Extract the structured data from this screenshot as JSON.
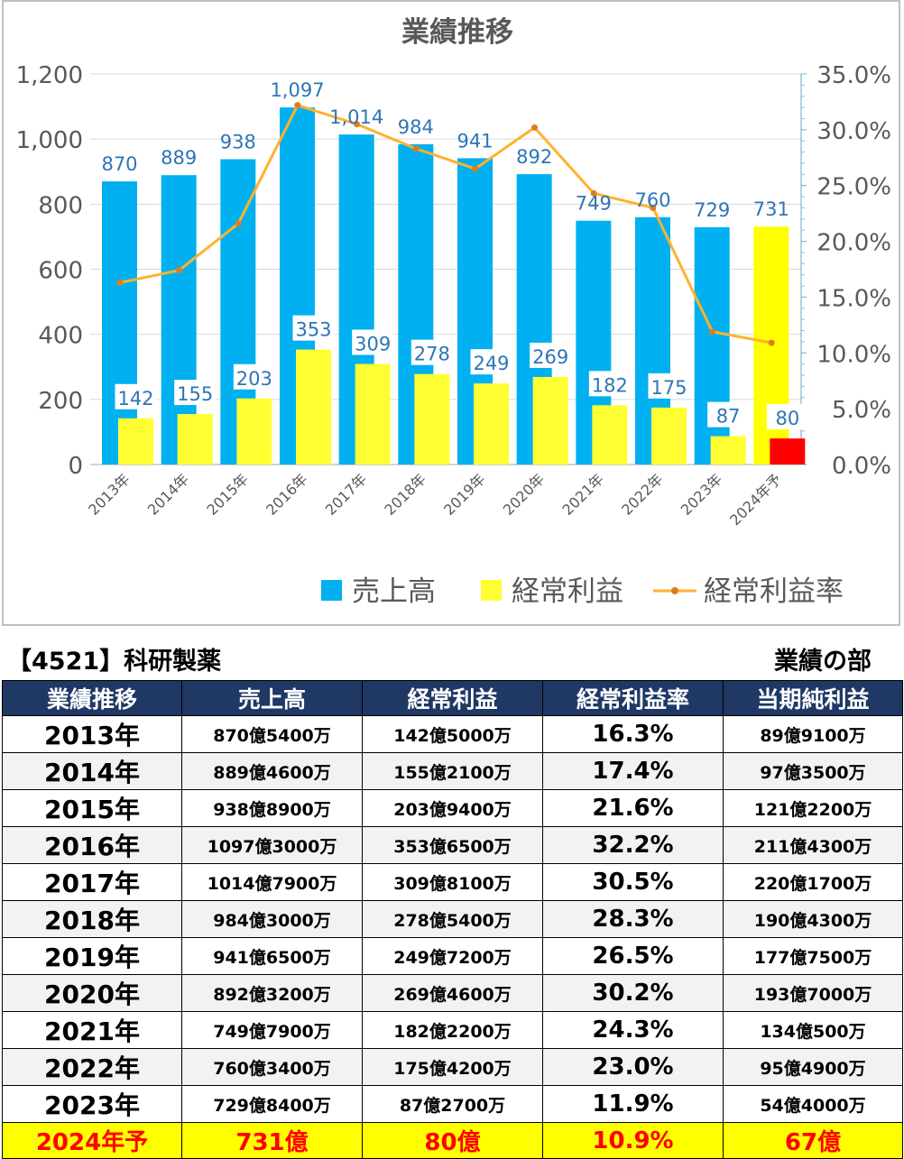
{
  "chart_data": {
    "type": "bar",
    "title": "業績推移",
    "categories": [
      "2013年",
      "2014年",
      "2015年",
      "2016年",
      "2017年",
      "2018年",
      "2019年",
      "2020年",
      "2021年",
      "2022年",
      "2023年",
      "2024年予"
    ],
    "series": [
      {
        "name": "売上高",
        "kind": "bar",
        "axis": "left",
        "color": "#00b0f0",
        "values": [
          870,
          889,
          938,
          1097,
          1014,
          984,
          941,
          892,
          749,
          760,
          729,
          731
        ],
        "labels": [
          "870",
          "889",
          "938",
          "1,097",
          "1,014",
          "984",
          "941",
          "892",
          "749",
          "760",
          "729",
          "731"
        ]
      },
      {
        "name": "経常利益",
        "kind": "bar",
        "axis": "left",
        "color": "#ffff33",
        "values": [
          142,
          155,
          203,
          353,
          309,
          278,
          249,
          269,
          182,
          175,
          87,
          80
        ],
        "labels": [
          "142",
          "155",
          "203",
          "353",
          "309",
          "278",
          "249",
          "269",
          "182",
          "175",
          "87",
          "80"
        ]
      },
      {
        "name": "経常利益率",
        "kind": "line",
        "axis": "right",
        "color": "#ffb22e",
        "values": [
          16.3,
          17.4,
          21.6,
          32.2,
          30.5,
          28.3,
          26.5,
          30.2,
          24.3,
          23.0,
          11.9,
          10.9
        ]
      }
    ],
    "forecast_colors": {
      "売上高": "#ffff00",
      "経常利益": "#ff0000"
    },
    "y_left": {
      "min": 0,
      "max": 1200,
      "ticks": [
        "0",
        "200",
        "400",
        "600",
        "800",
        "1,000",
        "1,200"
      ]
    },
    "y_right": {
      "min": 0,
      "max": 35,
      "ticks": [
        "0.0%",
        "5.0%",
        "10.0%",
        "15.0%",
        "20.0%",
        "25.0%",
        "30.0%",
        "35.0%"
      ]
    },
    "grid": true,
    "legend": "bottom"
  },
  "header": {
    "company": "【4521】科研製薬",
    "section": "業績の部"
  },
  "table": {
    "columns": [
      "業績推移",
      "売上高",
      "経常利益",
      "経常利益率",
      "当期純利益"
    ],
    "rows": [
      [
        "2013年",
        "870億5400万",
        "142億5000万",
        "16.3%",
        "89億9100万"
      ],
      [
        "2014年",
        "889億4600万",
        "155億2100万",
        "17.4%",
        "97億3500万"
      ],
      [
        "2015年",
        "938億8900万",
        "203億9400万",
        "21.6%",
        "121億2200万"
      ],
      [
        "2016年",
        "1097億3000万",
        "353億6500万",
        "32.2%",
        "211億4300万"
      ],
      [
        "2017年",
        "1014億7900万",
        "309億8100万",
        "30.5%",
        "220億1700万"
      ],
      [
        "2018年",
        "984億3000万",
        "278億5400万",
        "28.3%",
        "190億4300万"
      ],
      [
        "2019年",
        "941億6500万",
        "249億7200万",
        "26.5%",
        "177億7500万"
      ],
      [
        "2020年",
        "892億3200万",
        "269億4600万",
        "30.2%",
        "193億7000万"
      ],
      [
        "2021年",
        "749億7900万",
        "182億2200万",
        "24.3%",
        "134億500万"
      ],
      [
        "2022年",
        "760億3400万",
        "175億4200万",
        "23.0%",
        "95億4900万"
      ],
      [
        "2023年",
        "729億8400万",
        "87億2700万",
        "11.9%",
        "54億4000万"
      ]
    ],
    "forecast_row": [
      "2024年予",
      "731億",
      "80億",
      "10.9%",
      "67億"
    ]
  }
}
